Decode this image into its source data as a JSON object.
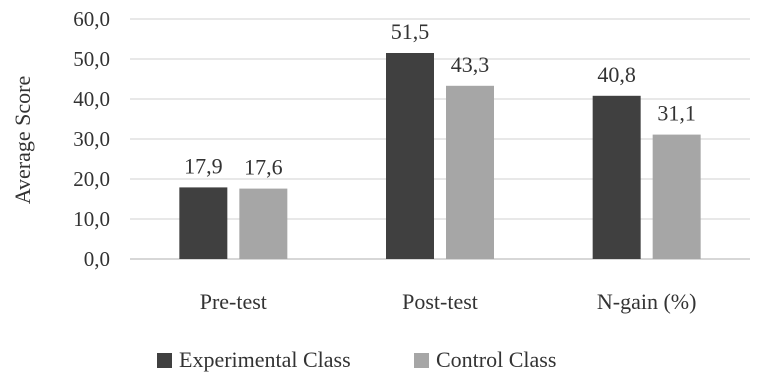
{
  "chart_data": {
    "type": "bar",
    "title": "",
    "xlabel": "",
    "ylabel": "Average Score",
    "ylim": [
      0,
      60
    ],
    "yticks": [
      "0,0",
      "10,0",
      "20,0",
      "30,0",
      "40,0",
      "50,0",
      "60,0"
    ],
    "grid": true,
    "legend_position": "bottom",
    "categories": [
      "Pre-test",
      "Post-test",
      "N-gain (%)"
    ],
    "series": [
      {
        "name": "Experimental Class",
        "color": "#404040",
        "values": [
          17.9,
          51.5,
          40.8
        ],
        "labels": [
          "17,9",
          "51,5",
          "40,8"
        ]
      },
      {
        "name": "Control Class",
        "color": "#a6a6a6",
        "values": [
          17.6,
          43.3,
          31.1
        ],
        "labels": [
          "17,6",
          "43,3",
          "31,1"
        ]
      }
    ]
  }
}
